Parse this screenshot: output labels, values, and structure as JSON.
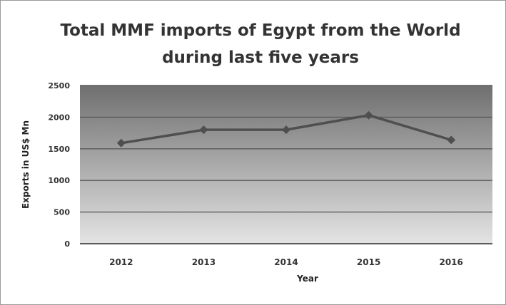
{
  "chart_data": {
    "type": "line",
    "title": "Total MMF imports of Egypt from the World during last five years",
    "title_lines": [
      "Total MMF imports of Egypt from the World",
      "during last five years"
    ],
    "xlabel": "Year",
    "ylabel": "Exports in US$ Mn",
    "categories": [
      "2012",
      "2013",
      "2014",
      "2015",
      "2016"
    ],
    "series": [
      {
        "values": [
          1590,
          1800,
          1800,
          2030,
          1640
        ]
      }
    ],
    "ylim": [
      0,
      2500
    ],
    "yticks": [
      "0",
      "500",
      "1000",
      "1500",
      "2000",
      "2500"
    ],
    "grid": true,
    "legend": "none",
    "colors": {
      "line": "#4f4f4f",
      "gridline": "#5a5a5a",
      "plot_top": "#6f6f6f",
      "plot_bottom": "#e4e4e4"
    }
  }
}
